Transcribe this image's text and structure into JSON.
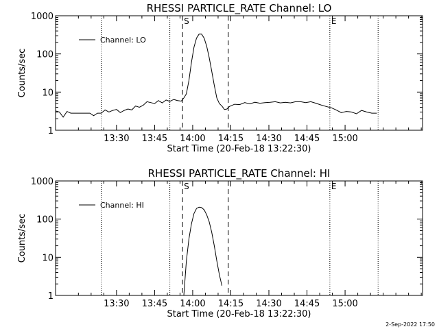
{
  "footer_stamp": "2-Sep-2022 17:50",
  "colors": {
    "background": "#ffffff",
    "foreground": "#000000"
  },
  "chart_data": [
    {
      "type": "line",
      "title": "RHESSI PARTICLE_RATE Channel: LO",
      "xlabel": "Start Time (20-Feb-18 13:22:30)",
      "ylabel": "Counts/sec",
      "yscale": "log",
      "ylim": [
        1,
        1000
      ],
      "xlim_minutes": [
        13.5,
        158
      ],
      "xticks": [
        {
          "minutes": 37.5,
          "label": "13:30"
        },
        {
          "minutes": 52.5,
          "label": "13:45"
        },
        {
          "minutes": 67.5,
          "label": "14:00"
        },
        {
          "minutes": 82.5,
          "label": "14:15"
        },
        {
          "minutes": 97.5,
          "label": "14:30"
        },
        {
          "minutes": 112.5,
          "label": "14:45"
        },
        {
          "minutes": 127.5,
          "label": "15:00"
        }
      ],
      "yticks": [
        {
          "value": 1,
          "label": "1"
        },
        {
          "value": 10,
          "label": "10"
        },
        {
          "value": 100,
          "label": "100"
        },
        {
          "value": 1000,
          "label": "1000"
        }
      ],
      "dotted_lines_minutes": [
        31.5,
        58.5,
        121.5,
        140.5
      ],
      "dashed_lines_minutes": [
        63.5,
        81.5
      ],
      "markers": [
        {
          "label": "S",
          "minutes": 63.5
        },
        {
          "label": "E",
          "minutes": 121.5
        }
      ],
      "legend": {
        "label": "Channel: LO",
        "position": "top-left"
      },
      "series": [
        {
          "name": "Channel: LO",
          "x": [
            13.5,
            15,
            16.5,
            18,
            19.5,
            21,
            22.5,
            24,
            25.5,
            27,
            28.5,
            30,
            31.5,
            33,
            34.5,
            36,
            37.5,
            39,
            40.5,
            42,
            43.5,
            45,
            46.5,
            48,
            49.5,
            51,
            52.5,
            54,
            55.5,
            57,
            58.5,
            60,
            61.5,
            63,
            64,
            65,
            66,
            67,
            68,
            69,
            70,
            71,
            72,
            73,
            74,
            75,
            76,
            77,
            78,
            79,
            80,
            81,
            82,
            84,
            86,
            88,
            90,
            92,
            94,
            96,
            98,
            100,
            102,
            104,
            106,
            108,
            110,
            112,
            114,
            116,
            118,
            120,
            122,
            124,
            126,
            128,
            130,
            132,
            134,
            136,
            138,
            140
          ],
          "y": [
            3.2,
            3.0,
            2.2,
            3.1,
            2.8,
            2.8,
            2.8,
            2.8,
            2.8,
            2.8,
            2.4,
            2.8,
            2.8,
            3.4,
            3.0,
            3.3,
            3.5,
            2.9,
            3.3,
            3.6,
            3.4,
            4.3,
            4.0,
            4.5,
            5.6,
            5.3,
            5.0,
            6.0,
            5.2,
            6.2,
            5.7,
            6.4,
            6.0,
            5.8,
            7.0,
            9.0,
            20,
            60,
            150,
            260,
            330,
            330,
            260,
            160,
            80,
            35,
            15,
            7,
            5,
            4.3,
            3.5,
            3.6,
            4.2,
            4.8,
            4.7,
            5.3,
            4.9,
            5.4,
            5.1,
            5.3,
            5.4,
            5.6,
            5.2,
            5.4,
            5.2,
            5.6,
            5.6,
            5.3,
            5.6,
            5.1,
            4.6,
            4.2,
            3.9,
            3.4,
            2.9,
            3.1,
            3.0,
            2.7,
            3.3,
            3.0,
            2.8,
            2.8
          ]
        }
      ]
    },
    {
      "type": "line",
      "title": "RHESSI PARTICLE_RATE Channel: HI",
      "xlabel": "Start Time (20-Feb-18 13:22:30)",
      "ylabel": "Counts/sec",
      "yscale": "log",
      "ylim": [
        1,
        1000
      ],
      "xlim_minutes": [
        13.5,
        158
      ],
      "xticks": [
        {
          "minutes": 37.5,
          "label": "13:30"
        },
        {
          "minutes": 52.5,
          "label": "13:45"
        },
        {
          "minutes": 67.5,
          "label": "14:00"
        },
        {
          "minutes": 82.5,
          "label": "14:15"
        },
        {
          "minutes": 97.5,
          "label": "14:30"
        },
        {
          "minutes": 112.5,
          "label": "14:45"
        },
        {
          "minutes": 127.5,
          "label": "15:00"
        }
      ],
      "yticks": [
        {
          "value": 1,
          "label": "1"
        },
        {
          "value": 10,
          "label": "10"
        },
        {
          "value": 100,
          "label": "100"
        },
        {
          "value": 1000,
          "label": "1000"
        }
      ],
      "dotted_lines_minutes": [
        31.5,
        58.5,
        121.5,
        140.5
      ],
      "dashed_lines_minutes": [
        63.5,
        81.5
      ],
      "markers": [
        {
          "label": "S",
          "minutes": 63.5
        },
        {
          "label": "E",
          "minutes": 121.5
        }
      ],
      "legend": {
        "label": "Channel: HI",
        "position": "top-left"
      },
      "series": [
        {
          "name": "Channel: HI",
          "x": [
            64,
            65,
            66,
            67,
            68,
            69,
            70,
            71,
            72,
            73,
            74,
            75,
            76,
            77,
            78,
            79
          ],
          "y": [
            1.0,
            8,
            30,
            75,
            140,
            190,
            205,
            200,
            175,
            130,
            85,
            45,
            20,
            8,
            3.5,
            1.8
          ]
        }
      ]
    }
  ]
}
